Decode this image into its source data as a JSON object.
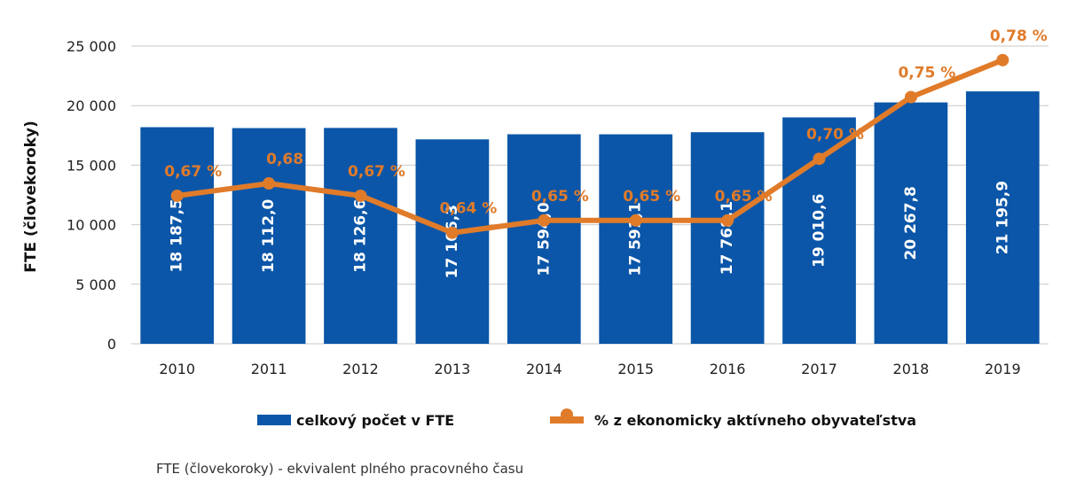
{
  "chart_data": {
    "type": "bar",
    "categories": [
      "2010",
      "2011",
      "2012",
      "2013",
      "2014",
      "2015",
      "2016",
      "2017",
      "2018",
      "2019"
    ],
    "series": [
      {
        "name": "celkový počet v FTE",
        "type": "bar",
        "axis": "left",
        "color": "#0b56a8",
        "values": [
          18187.5,
          18112.0,
          18126.6,
          17166.3,
          17594.0,
          17591.1,
          17768.1,
          19010.6,
          20267.8,
          21195.9
        ],
        "labels": [
          "18 187,5",
          "18 112,0",
          "18 126,6",
          "17 166,3",
          "17 594,0",
          "17 591,1",
          "17 768,1",
          "19 010,6",
          "20 267,8",
          "21 195,9"
        ]
      },
      {
        "name": "% z ekonomicky aktívneho obyvateľstva",
        "type": "line",
        "axis": "secondary",
        "color": "#e07b2a",
        "values": [
          0.67,
          0.68,
          0.67,
          0.64,
          0.65,
          0.65,
          0.65,
          0.7,
          0.75,
          0.78
        ],
        "labels": [
          "0,67 %",
          "0,68",
          "0,67 %",
          "0,64 %",
          "0,65 %",
          "0,65 %",
          "0,65 %",
          "0,70 %",
          "0,75 %",
          "0,78 %"
        ]
      }
    ],
    "ylabel": "FTE (človekoroky)",
    "ylim": [
      0,
      25000
    ],
    "yticks": [
      0,
      5000,
      10000,
      15000,
      20000,
      25000
    ],
    "ytick_labels": [
      "0",
      "5 000",
      "10 000",
      "15 000",
      "20 000",
      "25 000"
    ],
    "grid": true,
    "legend_position": "bottom"
  },
  "footnote": "FTE (človekoroky) - ekvivalent plného pracovného času"
}
